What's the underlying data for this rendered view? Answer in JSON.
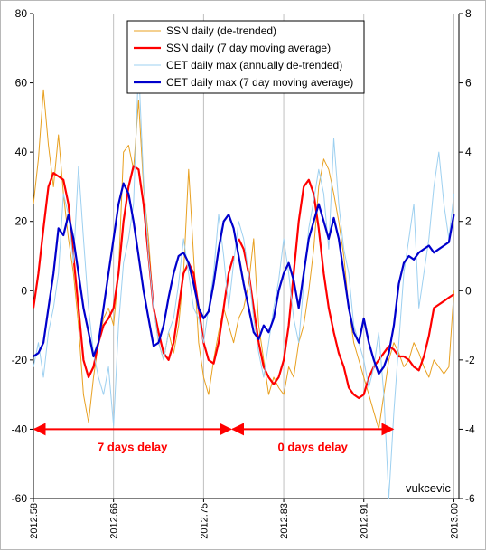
{
  "chart_data": {
    "type": "line",
    "title": "",
    "xlabel": "",
    "ylabel": "",
    "xlim": [
      2012.58,
      2013.005
    ],
    "x_ticks": [
      "2012.58",
      "2012.66",
      "2012.75",
      "2012.83",
      "2012.91",
      "2013.00"
    ],
    "y_left": {
      "lim": [
        -60,
        80
      ],
      "ticks": [
        "-60",
        "-40",
        "-20",
        "0",
        "20",
        "40",
        "60",
        "80"
      ]
    },
    "y_right": {
      "lim": [
        -6,
        8
      ],
      "ticks": [
        "-6",
        "-4",
        "-2",
        "0",
        "2",
        "4",
        "6",
        "8"
      ]
    },
    "grid": "vertical",
    "legend_position": "top-center",
    "colors": {
      "ssn_daily": "#e8a020",
      "ssn_ma": "#ff0000",
      "cet_daily": "#9dd0f0",
      "cet_ma": "#0000cc",
      "grid": "#c0c0c0",
      "annotation": "#ff0000"
    },
    "series": [
      {
        "key": "ssn_daily",
        "name": "SSN daily (de-trended)",
        "axis": "left",
        "width": 1,
        "x": [
          2012.58,
          2012.585,
          2012.59,
          2012.595,
          2012.6,
          2012.605,
          2012.61,
          2012.615,
          2012.62,
          2012.625,
          2012.63,
          2012.635,
          2012.64,
          2012.645,
          2012.65,
          2012.655,
          2012.66,
          2012.665,
          2012.67,
          2012.675,
          2012.68,
          2012.685,
          2012.69,
          2012.695,
          2012.7,
          2012.705,
          2012.71,
          2012.715,
          2012.72,
          2012.725,
          2012.73,
          2012.735,
          2012.74,
          2012.745,
          2012.75,
          2012.755,
          2012.76,
          2012.765,
          2012.77,
          2012.775,
          2012.78,
          2012.785,
          2012.79,
          2012.795,
          2012.8,
          2012.805,
          2012.81,
          2012.815,
          2012.82,
          2012.825,
          2012.83,
          2012.835,
          2012.84,
          2012.845,
          2012.85,
          2012.855,
          2012.86,
          2012.865,
          2012.87,
          2012.875,
          2012.88,
          2012.885,
          2012.89,
          2012.895,
          2012.9,
          2012.905,
          2012.91,
          2012.915,
          2012.92,
          2012.925,
          2012.93,
          2012.935,
          2012.94,
          2012.945,
          2012.95,
          2012.955,
          2012.96,
          2012.965,
          2012.97,
          2012.975,
          2012.98,
          2012.985,
          2012.99,
          2012.995,
          2013.0
        ],
        "y": [
          25,
          38,
          58,
          42,
          30,
          45,
          28,
          15,
          5,
          -10,
          -30,
          -38,
          -25,
          -15,
          -8,
          -5,
          -10,
          5,
          40,
          42,
          35,
          55,
          30,
          15,
          -5,
          -15,
          -20,
          -12,
          -18,
          -10,
          5,
          35,
          10,
          -15,
          -25,
          -30,
          -20,
          -12,
          -5,
          -10,
          -15,
          -8,
          -5,
          2,
          15,
          -10,
          -20,
          -30,
          -25,
          -28,
          -30,
          -22,
          -25,
          -15,
          -10,
          0,
          12,
          30,
          38,
          35,
          28,
          20,
          10,
          -5,
          -15,
          -20,
          -25,
          -30,
          -35,
          -40,
          -30,
          -20,
          -15,
          -18,
          -22,
          -20,
          -15,
          -18,
          -22,
          -25,
          -20,
          -22,
          -24,
          -22,
          0
        ]
      },
      {
        "key": "ssn_ma",
        "name": "SSN daily (7 day moving average)",
        "axis": "left",
        "width": 2.2,
        "x": [
          2012.58,
          2012.585,
          2012.59,
          2012.595,
          2012.6,
          2012.605,
          2012.61,
          2012.615,
          2012.62,
          2012.625,
          2012.63,
          2012.635,
          2012.64,
          2012.645,
          2012.65,
          2012.655,
          2012.66,
          2012.665,
          2012.67,
          2012.675,
          2012.68,
          2012.685,
          2012.69,
          2012.695,
          2012.7,
          2012.705,
          2012.71,
          2012.715,
          2012.72,
          2012.725,
          2012.73,
          2012.735,
          2012.74,
          2012.745,
          2012.75,
          2012.755,
          2012.76,
          2012.765,
          2012.77,
          2012.775,
          2012.78,
          2012.785,
          2012.79,
          2012.795,
          2012.8,
          2012.805,
          2012.81,
          2012.815,
          2012.82,
          2012.825,
          2012.83,
          2012.835,
          2012.84,
          2012.845,
          2012.85,
          2012.855,
          2012.86,
          2012.865,
          2012.87,
          2012.875,
          2012.88,
          2012.885,
          2012.89,
          2012.895,
          2012.9,
          2012.905,
          2012.91,
          2012.915,
          2012.92,
          2012.925,
          2012.93,
          2012.935,
          2012.94,
          2012.945,
          2012.95,
          2012.955,
          2012.96,
          2012.965,
          2012.97,
          2012.975,
          2012.98,
          2012.985,
          2012.99,
          2012.995,
          2013.0
        ],
        "y": [
          -5,
          5,
          18,
          30,
          34,
          33,
          32,
          25,
          10,
          -5,
          -20,
          -25,
          -22,
          -15,
          -10,
          -8,
          -5,
          5,
          20,
          30,
          36,
          35,
          25,
          10,
          -5,
          -12,
          -18,
          -20,
          -15,
          -5,
          5,
          8,
          5,
          -5,
          -15,
          -20,
          -21,
          -15,
          -5,
          5,
          10,
          15,
          12,
          5,
          -5,
          -15,
          -22,
          -25,
          -27,
          -25,
          -20,
          -10,
          5,
          20,
          30,
          32,
          28,
          18,
          5,
          -5,
          -12,
          -18,
          -22,
          -28,
          -30,
          -31,
          -30,
          -25,
          -22,
          -20,
          -18,
          -16,
          -17,
          -19,
          -19,
          -20,
          -22,
          -23,
          -19,
          -13,
          -5,
          -4,
          -3,
          -2,
          -1
        ],
        "segments": [
          [
            0,
            41
          ],
          [
            41,
            85
          ]
        ]
      },
      {
        "key": "cet_daily",
        "name": "CET daily max (annually de-trended)",
        "axis": "right",
        "width": 1,
        "x": [
          2012.58,
          2012.585,
          2012.59,
          2012.595,
          2012.6,
          2012.605,
          2012.61,
          2012.615,
          2012.62,
          2012.625,
          2012.63,
          2012.635,
          2012.64,
          2012.645,
          2012.65,
          2012.655,
          2012.66,
          2012.665,
          2012.67,
          2012.675,
          2012.68,
          2012.685,
          2012.69,
          2012.695,
          2012.7,
          2012.705,
          2012.71,
          2012.715,
          2012.72,
          2012.725,
          2012.73,
          2012.735,
          2012.74,
          2012.745,
          2012.75,
          2012.755,
          2012.76,
          2012.765,
          2012.77,
          2012.775,
          2012.78,
          2012.785,
          2012.79,
          2012.795,
          2012.8,
          2012.805,
          2012.81,
          2012.815,
          2012.82,
          2012.825,
          2012.83,
          2012.835,
          2012.84,
          2012.845,
          2012.85,
          2012.855,
          2012.86,
          2012.865,
          2012.87,
          2012.875,
          2012.88,
          2012.885,
          2012.89,
          2012.895,
          2012.9,
          2012.905,
          2012.91,
          2012.915,
          2012.92,
          2012.925,
          2012.93,
          2012.935,
          2012.94,
          2012.945,
          2012.95,
          2012.955,
          2012.96,
          2012.965,
          2012.97,
          2012.975,
          2012.98,
          2012.985,
          2012.99,
          2012.995,
          2013.0
        ],
        "y": [
          -2.2,
          -1.5,
          -2.5,
          -1.2,
          -0.5,
          0.5,
          2.8,
          2.2,
          0.8,
          3.6,
          1.5,
          -0.5,
          -1.8,
          -2.5,
          -3.0,
          -2.2,
          -3.9,
          -1.0,
          0.8,
          1.5,
          2.5,
          6.5,
          3.2,
          1.0,
          -0.5,
          -1.5,
          -2.0,
          -1.2,
          -0.8,
          0.2,
          1.5,
          0.5,
          -0.5,
          -0.8,
          -1.5,
          -0.5,
          0.5,
          2.2,
          1.0,
          -0.5,
          0.8,
          2.0,
          1.5,
          0.5,
          -0.8,
          -1.8,
          -2.5,
          -1.5,
          -0.5,
          0.3,
          1.5,
          0.5,
          -0.8,
          -1.5,
          0.2,
          1.8,
          2.6,
          3.5,
          2.8,
          1.2,
          4.4,
          2.5,
          1.2,
          0.5,
          -1.0,
          -1.5,
          -2.0,
          -2.8,
          -2.2,
          -1.2,
          -3.0,
          -6.0,
          -3.5,
          -1.5,
          0.5,
          1.5,
          2.5,
          -0.5,
          0.5,
          1.5,
          3.0,
          4.0,
          2.5,
          1.5,
          2.8
        ]
      },
      {
        "key": "cet_ma",
        "name": "CET daily max (7 day moving average)",
        "axis": "right",
        "width": 2.2,
        "x": [
          2012.58,
          2012.585,
          2012.59,
          2012.595,
          2012.6,
          2012.605,
          2012.61,
          2012.615,
          2012.62,
          2012.625,
          2012.63,
          2012.635,
          2012.64,
          2012.645,
          2012.65,
          2012.655,
          2012.66,
          2012.665,
          2012.67,
          2012.675,
          2012.68,
          2012.685,
          2012.69,
          2012.695,
          2012.7,
          2012.705,
          2012.71,
          2012.715,
          2012.72,
          2012.725,
          2012.73,
          2012.735,
          2012.74,
          2012.745,
          2012.75,
          2012.755,
          2012.76,
          2012.765,
          2012.77,
          2012.775,
          2012.78,
          2012.785,
          2012.79,
          2012.795,
          2012.8,
          2012.805,
          2012.81,
          2012.815,
          2012.82,
          2012.825,
          2012.83,
          2012.835,
          2012.84,
          2012.845,
          2012.85,
          2012.855,
          2012.86,
          2012.865,
          2012.87,
          2012.875,
          2012.88,
          2012.885,
          2012.89,
          2012.895,
          2012.9,
          2012.905,
          2012.91,
          2012.915,
          2012.92,
          2012.925,
          2012.93,
          2012.935,
          2012.94,
          2012.945,
          2012.95,
          2012.955,
          2012.96,
          2012.965,
          2012.97,
          2012.975,
          2012.98,
          2012.985,
          2012.99,
          2012.995,
          2013.0
        ],
        "y": [
          -1.9,
          -1.8,
          -1.5,
          -0.5,
          0.5,
          1.8,
          1.6,
          2.2,
          1.5,
          0.5,
          -0.5,
          -1.2,
          -1.9,
          -1.5,
          -0.5,
          0.5,
          1.5,
          2.5,
          3.1,
          2.8,
          2.0,
          1.0,
          0.0,
          -0.8,
          -1.6,
          -1.5,
          -1.0,
          -0.2,
          0.5,
          1.0,
          1.1,
          0.8,
          0.2,
          -0.5,
          -0.8,
          -0.6,
          0.2,
          1.2,
          2.0,
          2.2,
          1.8,
          1.0,
          0.2,
          -0.5,
          -1.2,
          -1.4,
          -1.0,
          -1.2,
          -0.8,
          0.0,
          0.5,
          0.8,
          0.3,
          -0.5,
          0.5,
          1.5,
          2.0,
          2.5,
          2.0,
          1.5,
          2.1,
          1.5,
          0.5,
          -0.5,
          -1.2,
          -1.5,
          -0.8,
          -1.5,
          -2.0,
          -2.4,
          -2.2,
          -1.8,
          -1.0,
          0.2,
          0.8,
          1.0,
          0.9,
          1.1,
          1.2,
          1.3,
          1.1,
          1.2,
          1.3,
          1.4,
          2.2
        ]
      }
    ],
    "annotations": [
      {
        "text": "7 days delay",
        "x_from": 2012.58,
        "x_to": 2012.778,
        "y": -40
      },
      {
        "text": "0 days delay",
        "x_from": 2012.778,
        "x_to": 2012.94,
        "y": -40
      }
    ],
    "credit": "vukcevic"
  }
}
